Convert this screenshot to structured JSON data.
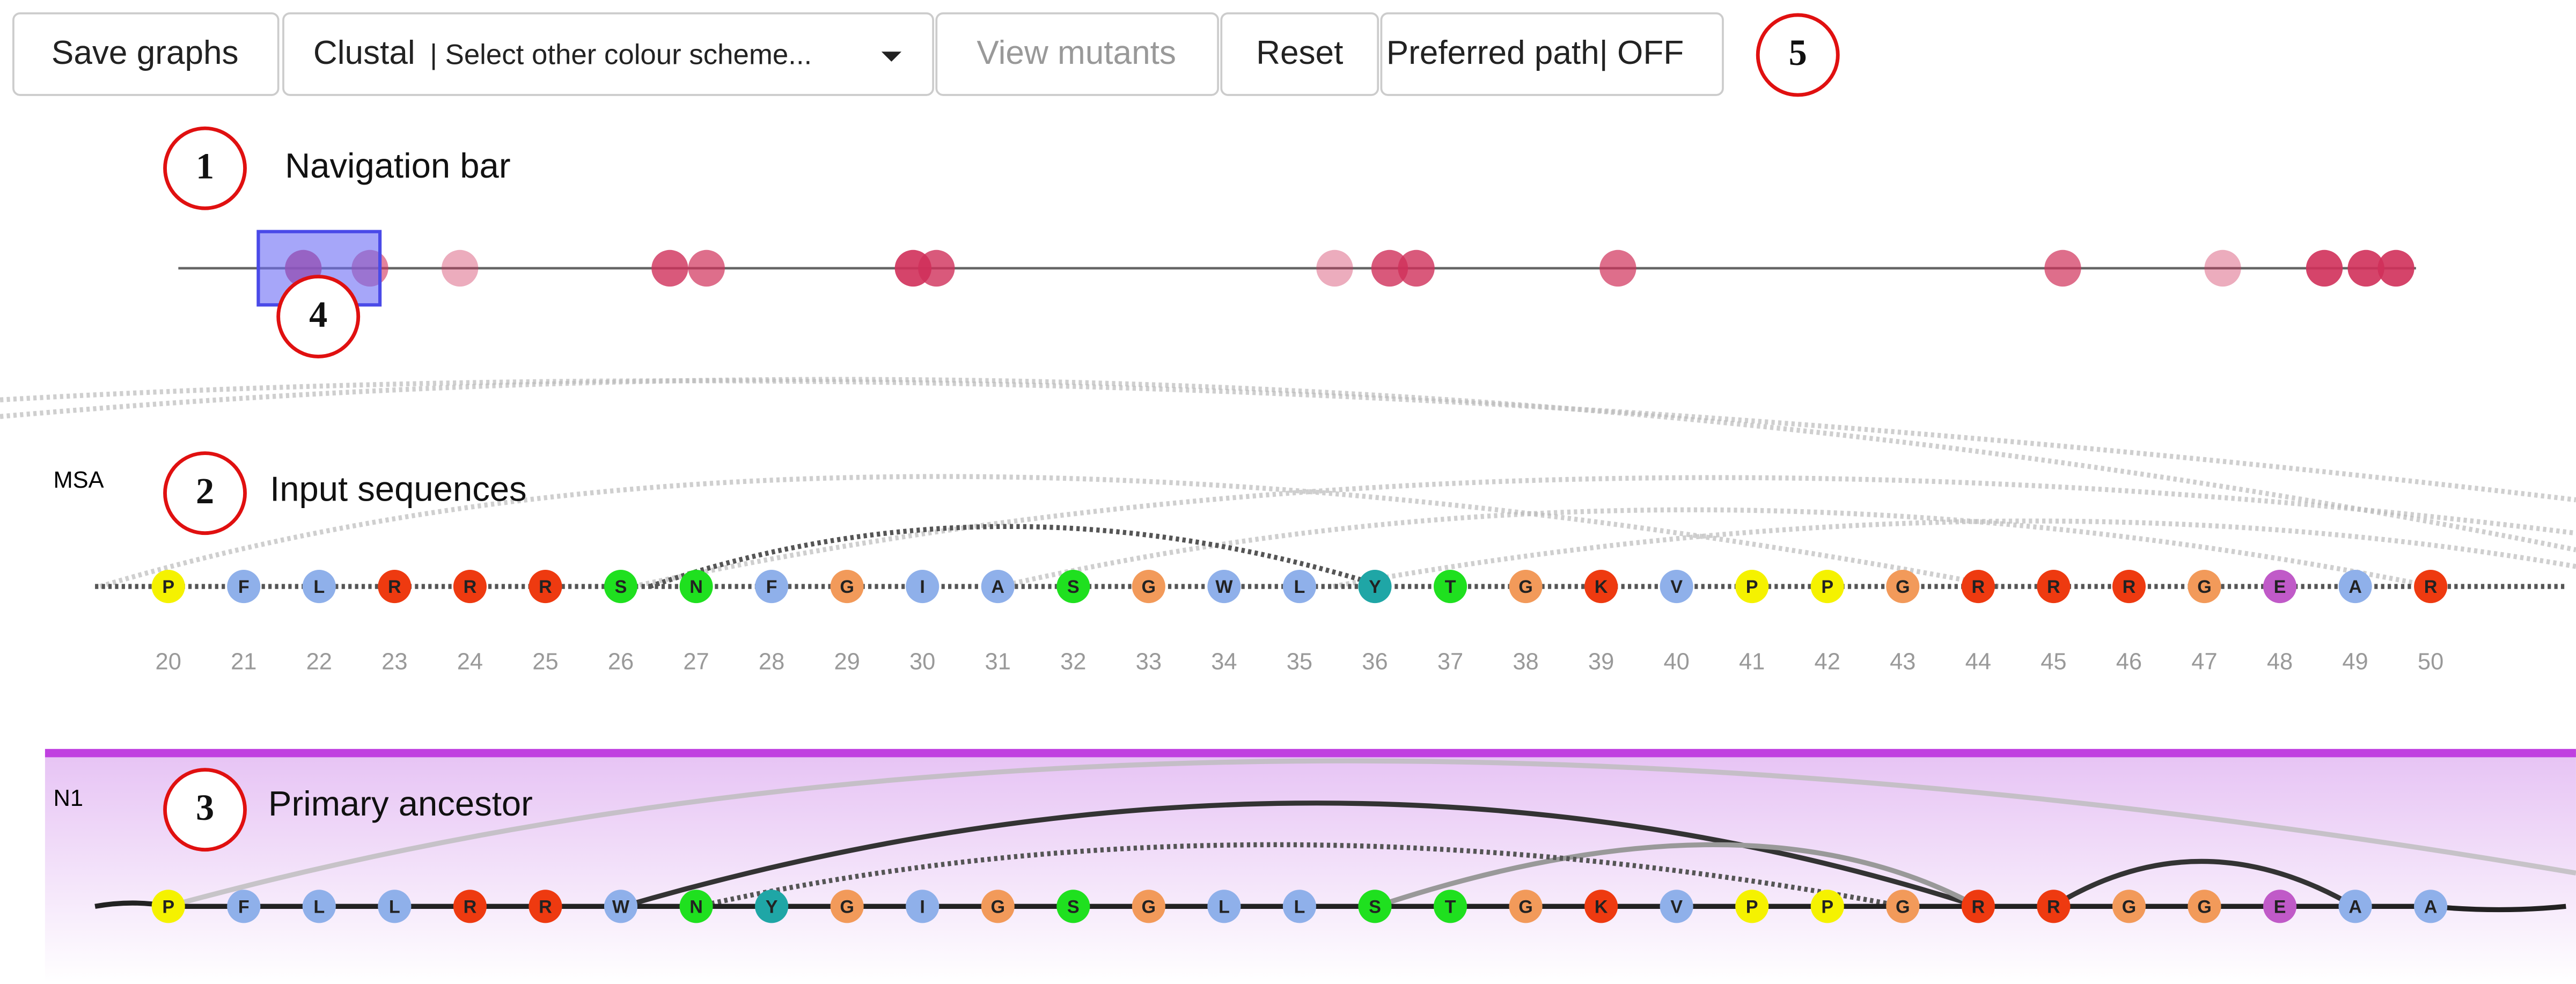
{
  "toolbar": {
    "save_graphs": "Save graphs",
    "colour_scheme": "Clustal",
    "colour_scheme_select": "| Select other colour scheme...",
    "view_mutants": "View mutants",
    "reset": "Reset",
    "preferred_path": "Preferred path| OFF"
  },
  "callouts": [
    "1",
    "2",
    "3",
    "4",
    "5"
  ],
  "panels": {
    "navigation": {
      "label": "Navigation bar"
    },
    "msa": {
      "tag": "MSA",
      "label": "Input sequences",
      "residues": [
        "P",
        "F",
        "L",
        "R",
        "R",
        "R",
        "S",
        "N",
        "F",
        "G",
        "I",
        "A",
        "S",
        "G",
        "W",
        "L",
        "Y",
        "T",
        "G",
        "K",
        "V",
        "P",
        "P",
        "G",
        "R",
        "R",
        "R",
        "G",
        "E",
        "A",
        "R"
      ],
      "positions": [
        20,
        21,
        22,
        23,
        24,
        25,
        26,
        27,
        28,
        29,
        30,
        31,
        32,
        33,
        34,
        35,
        36,
        37,
        38,
        39,
        40,
        41,
        42,
        43,
        44,
        45,
        46,
        47,
        48,
        49,
        50
      ]
    },
    "ancestor": {
      "tag": "N1",
      "label": "Primary ancestor",
      "residues": [
        "P",
        "F",
        "L",
        "L",
        "R",
        "R",
        "W",
        "N",
        "Y",
        "G",
        "I",
        "G",
        "S",
        "G",
        "L",
        "L",
        "S",
        "T",
        "G",
        "K",
        "V",
        "P",
        "P",
        "G",
        "R",
        "R",
        "G",
        "G",
        "E",
        "A",
        "A"
      ]
    }
  },
  "residue_colors": {
    "P": "#f5f200",
    "F": "#8fb0ea",
    "L": "#8fb0ea",
    "I": "#8fb0ea",
    "A": "#8fb0ea",
    "W": "#8fb0ea",
    "V": "#8fb0ea",
    "R": "#ee3a10",
    "K": "#ee3a10",
    "S": "#1fe01f",
    "T": "#1fe01f",
    "N": "#1fe01f",
    "G": "#f29a5a",
    "Y": "#1fa6a6",
    "E": "#c05ac8"
  }
}
